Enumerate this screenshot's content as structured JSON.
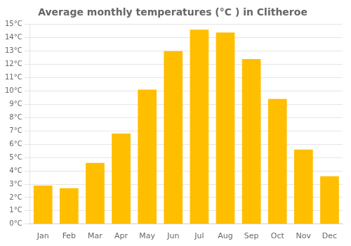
{
  "chart_data": {
    "type": "bar",
    "title": "Average monthly temperatures (°C ) in Clitheroe",
    "categories": [
      "Jan",
      "Feb",
      "Mar",
      "Apr",
      "May",
      "Jun",
      "Jul",
      "Aug",
      "Sep",
      "Oct",
      "Nov",
      "Dec"
    ],
    "values": [
      2.9,
      2.7,
      4.6,
      6.8,
      10.1,
      13.0,
      14.6,
      14.4,
      12.4,
      9.4,
      5.6,
      3.6
    ],
    "color": "#FFBE00",
    "ylim": [
      0,
      15
    ],
    "yticks": [
      {
        "value": 0,
        "label": "0°C"
      },
      {
        "value": 1,
        "label": "1°C"
      },
      {
        "value": 2,
        "label": "2°C"
      },
      {
        "value": 3,
        "label": "3°C"
      },
      {
        "value": 4,
        "label": "4°C"
      },
      {
        "value": 5,
        "label": "5°C"
      },
      {
        "value": 6,
        "label": "6°C"
      },
      {
        "value": 7,
        "label": "7°C"
      },
      {
        "value": 8,
        "label": "8°C"
      },
      {
        "value": 9,
        "label": "9°C"
      },
      {
        "value": 10,
        "label": "10°C"
      },
      {
        "value": 11,
        "label": "11°C"
      },
      {
        "value": 12,
        "label": "12°C"
      },
      {
        "value": 13,
        "label": "13°C"
      },
      {
        "value": 14,
        "label": "14°C"
      },
      {
        "value": 15,
        "label": "15°C"
      }
    ],
    "grid": true
  }
}
